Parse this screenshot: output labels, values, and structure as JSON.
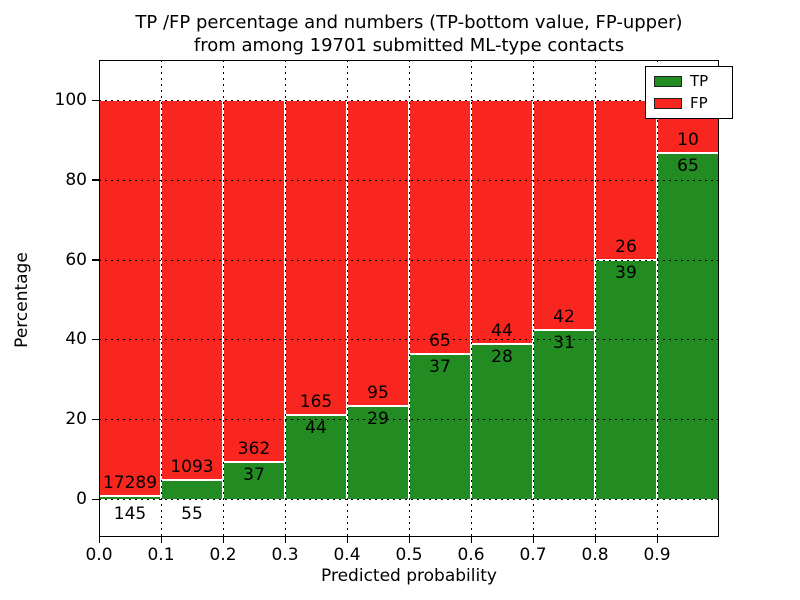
{
  "title": {
    "line1": "TP /FP percentage and numbers (TP-bottom value, FP-upper)",
    "line2": "from among 19701 submitted ML-type contacts"
  },
  "axes": {
    "xlabel": "Predicted probability",
    "ylabel": "Percentage",
    "x_tick_labels": [
      "0.0",
      "0.1",
      "0.2",
      "0.3",
      "0.4",
      "0.5",
      "0.6",
      "0.7",
      "0.8",
      "0.9"
    ],
    "y_tick_labels": [
      "0",
      "20",
      "40",
      "60",
      "80",
      "100"
    ]
  },
  "legend": {
    "entries": [
      {
        "label": "TP",
        "color": "#228b22"
      },
      {
        "label": "FP",
        "color": "#f8261f"
      }
    ]
  },
  "chart_data": {
    "type": "bar",
    "stacked": true,
    "title": "TP /FP percentage and numbers (TP-bottom value, FP-upper) from among 19701 submitted ML-type contacts",
    "xlabel": "Predicted probability",
    "ylabel": "Percentage",
    "xlim": [
      0.0,
      1.0
    ],
    "ylim": [
      -10,
      110
    ],
    "x_ticks": [
      0.0,
      0.1,
      0.2,
      0.3,
      0.4,
      0.5,
      0.6,
      0.7,
      0.8,
      0.9
    ],
    "y_ticks": [
      0,
      20,
      40,
      60,
      80,
      100
    ],
    "grid": true,
    "legend_position": "upper right",
    "total_contacts": 19701,
    "bin_width": 0.1,
    "bin_start": [
      0.0,
      0.1,
      0.2,
      0.3,
      0.4,
      0.5,
      0.6,
      0.7,
      0.8,
      0.9
    ],
    "series": [
      {
        "name": "TP",
        "color": "#228b22",
        "counts": [
          145,
          55,
          37,
          44,
          29,
          37,
          28,
          31,
          39,
          65
        ],
        "percent": [
          0.83,
          4.79,
          9.27,
          21.05,
          23.39,
          36.27,
          38.89,
          42.47,
          60.0,
          86.67
        ]
      },
      {
        "name": "FP",
        "color": "#f8261f",
        "counts": [
          17289,
          1093,
          362,
          165,
          95,
          65,
          44,
          42,
          26,
          10
        ],
        "percent": [
          99.17,
          95.21,
          90.73,
          78.95,
          76.61,
          63.73,
          61.11,
          57.53,
          40.0,
          13.33
        ]
      }
    ]
  }
}
